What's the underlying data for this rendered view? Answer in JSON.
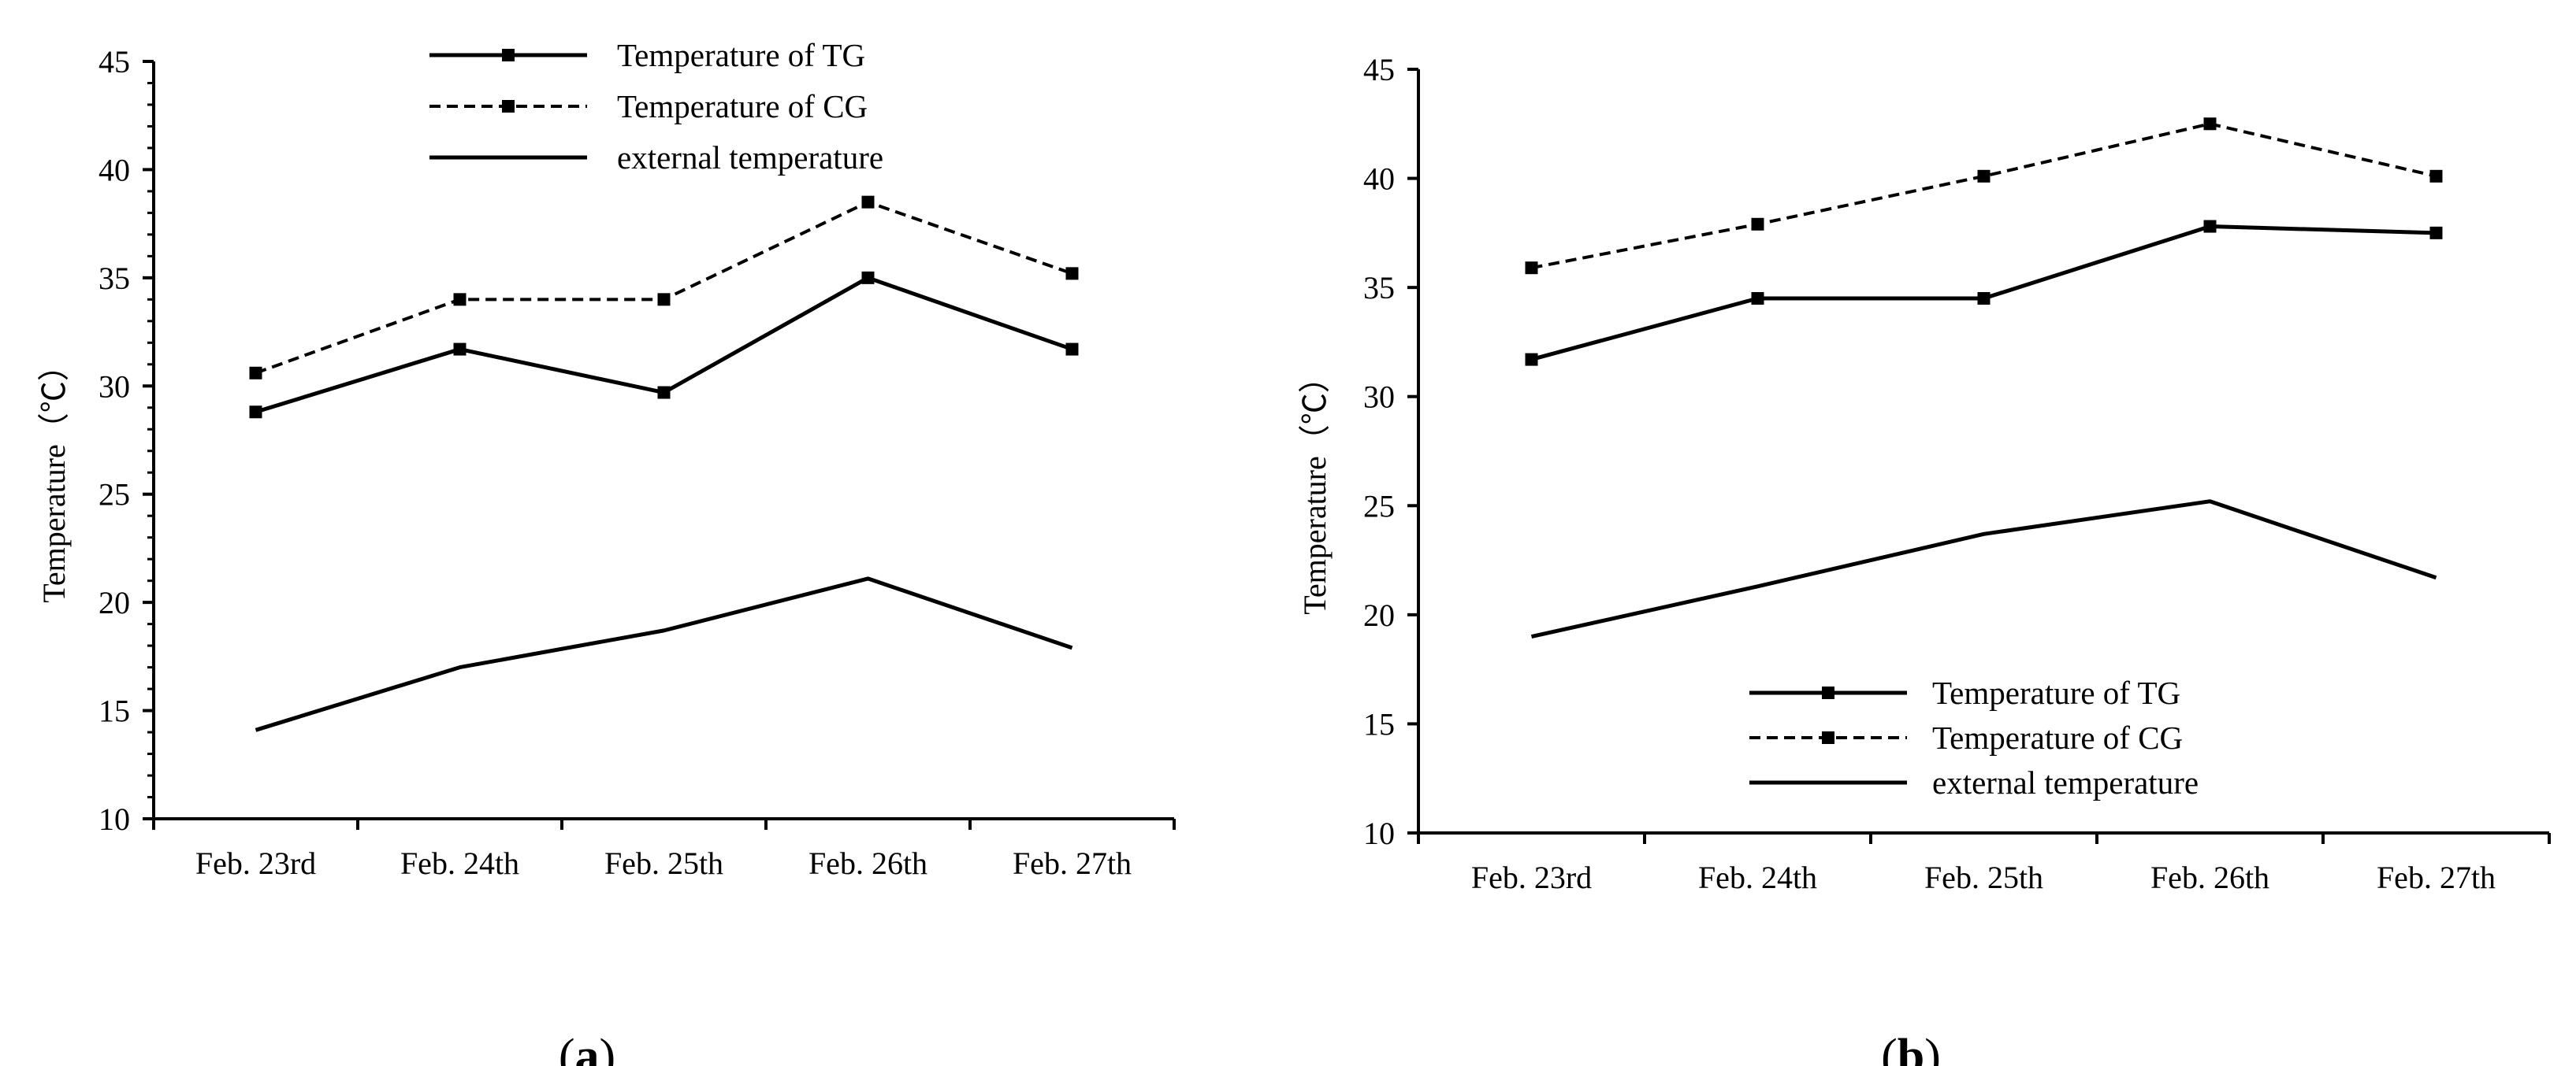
{
  "chart_data": [
    {
      "id": "a",
      "type": "line",
      "panel_label": {
        "open": "(",
        "letter": "a",
        "close": ")"
      },
      "categories": [
        "Feb. 23rd",
        "Feb. 24th",
        "Feb. 25th",
        "Feb. 26th",
        "Feb. 27th"
      ],
      "ylabel": "Temperature（℃）",
      "ylim": [
        10,
        45
      ],
      "yticks": [
        10,
        15,
        20,
        25,
        30,
        35,
        40,
        45
      ],
      "legend_position": "top-center",
      "series": [
        {
          "name": "Temperature of TG",
          "style": "solid-marker",
          "values": [
            28.8,
            31.7,
            29.7,
            35.0,
            31.7
          ]
        },
        {
          "name": "Temperature of CG",
          "style": "dashed-marker",
          "values": [
            30.6,
            34.0,
            34.0,
            38.5,
            35.2
          ]
        },
        {
          "name": "external temperature",
          "style": "solid",
          "values": [
            14.1,
            17.0,
            18.7,
            21.1,
            17.9
          ]
        }
      ]
    },
    {
      "id": "b",
      "type": "line",
      "panel_label": {
        "open": "(",
        "letter": "b",
        "close": ")"
      },
      "categories": [
        "Feb. 23rd",
        "Feb. 24th",
        "Feb. 25th",
        "Feb. 26th",
        "Feb. 27th"
      ],
      "ylabel": "Temperature（℃）",
      "ylim": [
        10,
        45
      ],
      "yticks": [
        10,
        15,
        20,
        25,
        30,
        35,
        40,
        45
      ],
      "legend_position": "bottom-right",
      "series": [
        {
          "name": "Temperature of TG",
          "style": "solid-marker",
          "values": [
            31.7,
            34.5,
            34.5,
            37.8,
            37.5
          ]
        },
        {
          "name": "Temperature of CG",
          "style": "dashed-marker",
          "values": [
            35.9,
            37.9,
            40.1,
            42.5,
            40.1
          ]
        },
        {
          "name": "external temperature",
          "style": "solid",
          "values": [
            19.0,
            21.3,
            23.7,
            25.2,
            21.7
          ]
        }
      ]
    }
  ]
}
